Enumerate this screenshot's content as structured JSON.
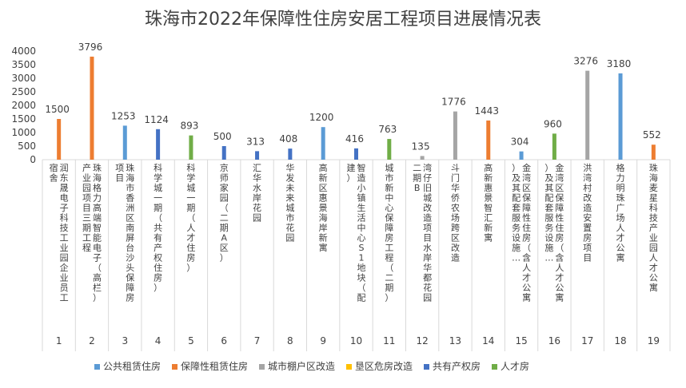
{
  "chart_data": {
    "type": "bar",
    "title": "珠海市2022年保障性住房安居工程项目进展情况表",
    "ylim": [
      0,
      4000
    ],
    "yticks": [
      0,
      500,
      1000,
      1500,
      2000,
      2500,
      3000,
      3500,
      4000
    ],
    "grid": false,
    "legend_position": "bottom",
    "series": [
      {
        "name": "公共租赁住房",
        "color": "#5b9bd5"
      },
      {
        "name": "保障性租赁住房",
        "color": "#ed7d31"
      },
      {
        "name": "城市棚户区改造",
        "color": "#a5a5a5"
      },
      {
        "name": "垦区危房改造",
        "color": "#ffc000"
      },
      {
        "name": "共有产权房",
        "color": "#4472c4"
      },
      {
        "name": "人才房",
        "color": "#70ad47"
      }
    ],
    "categories": [
      {
        "index": "1",
        "name": "润东晟电子科技工业园企业员工宿舍",
        "value": 1500,
        "series": 1
      },
      {
        "index": "2",
        "name": "珠海格力高端智能电子（高栏）产业园项目三期工程",
        "value": 3796,
        "series": 1
      },
      {
        "index": "3",
        "name": "珠海市香洲区南屏台沙头保障房项目",
        "value": 1253,
        "series": 0
      },
      {
        "index": "4",
        "name": "科学城一期（共有产权住房）",
        "value": 1124,
        "series": 4
      },
      {
        "index": "5",
        "name": "科学城一期（人才住房）",
        "value": 893,
        "series": 5
      },
      {
        "index": "6",
        "name": "京师家园（二期A区）",
        "value": 500,
        "series": 4
      },
      {
        "index": "7",
        "name": "汇华水岸花园",
        "value": 313,
        "series": 4
      },
      {
        "index": "8",
        "name": "华发未来城市花园",
        "value": 408,
        "series": 4
      },
      {
        "index": "9",
        "name": "高新区惠景海岸新寓",
        "value": 1200,
        "series": 0
      },
      {
        "index": "10",
        "name": "智造小镇生活中心S1地块（配建）",
        "value": 416,
        "series": 4
      },
      {
        "index": "11",
        "name": "城市新中心保障房工程（二期）",
        "value": 763,
        "series": 5
      },
      {
        "index": "12",
        "name": "湾仔旧城改造项目水岸华都花园二期B",
        "value": 135,
        "series": 2
      },
      {
        "index": "13",
        "name": "斗门华侨农场跨区改造",
        "value": 1776,
        "series": 2
      },
      {
        "index": "14",
        "name": "高新惠景智汇新寓",
        "value": 1443,
        "series": 1
      },
      {
        "index": "15",
        "name": "金湾区保障性住房（含人才公寓）及其配套服务设施…",
        "value": 304,
        "series": 0
      },
      {
        "index": "16",
        "name": "金湾区保障性住房（含人才公寓）及其配套服务设施…",
        "value": 960,
        "series": 5
      },
      {
        "index": "17",
        "name": "洪湾村改造安置房项目",
        "value": 3276,
        "series": 2
      },
      {
        "index": "18",
        "name": "格力明珠广场人才公寓",
        "value": 3180,
        "series": 0
      },
      {
        "index": "19",
        "name": "珠海麦星科技产业园人才公寓",
        "value": 552,
        "series": 1
      }
    ]
  }
}
